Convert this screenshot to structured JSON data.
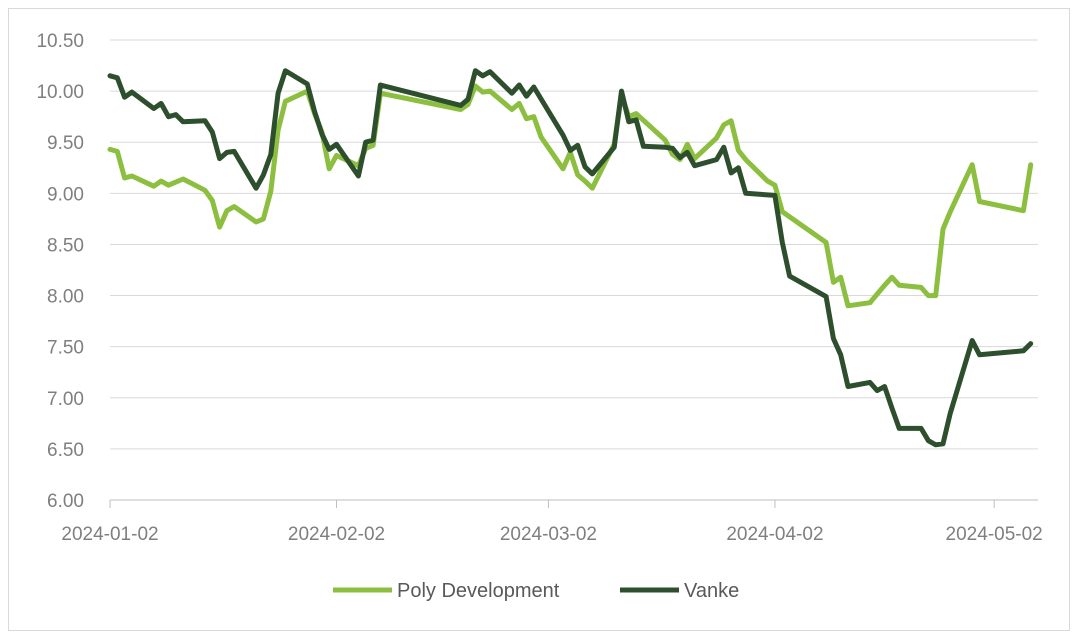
{
  "chart_data": {
    "type": "line",
    "title": "",
    "xlabel": "",
    "ylabel": "",
    "ylim": [
      6.0,
      10.5
    ],
    "xlim": [
      "2024-01-02",
      "2024-05-08"
    ],
    "y_ticks": [
      "6.00",
      "6.50",
      "7.00",
      "7.50",
      "8.00",
      "8.50",
      "9.00",
      "9.50",
      "10.00",
      "10.50"
    ],
    "x_ticks": [
      {
        "date": "2024-01-02",
        "label": "2024-01-02"
      },
      {
        "date": "2024-02-02",
        "label": "2024-02-02"
      },
      {
        "date": "2024-03-02",
        "label": "2024-03-02"
      },
      {
        "date": "2024-04-02",
        "label": "2024-04-02"
      },
      {
        "date": "2024-05-02",
        "label": "2024-05-02"
      }
    ],
    "grid": "horizontal",
    "legend_position": "bottom",
    "series": [
      {
        "name": "Poly Development",
        "color": "#8cbf3f",
        "points": [
          [
            "2024-01-02",
            9.43
          ],
          [
            "2024-01-03",
            9.41
          ],
          [
            "2024-01-04",
            9.15
          ],
          [
            "2024-01-05",
            9.17
          ],
          [
            "2024-01-08",
            9.07
          ],
          [
            "2024-01-09",
            9.12
          ],
          [
            "2024-01-10",
            9.08
          ],
          [
            "2024-01-12",
            9.14
          ],
          [
            "2024-01-15",
            9.03
          ],
          [
            "2024-01-16",
            8.93
          ],
          [
            "2024-01-17",
            8.67
          ],
          [
            "2024-01-18",
            8.83
          ],
          [
            "2024-01-19",
            8.87
          ],
          [
            "2024-01-22",
            8.72
          ],
          [
            "2024-01-23",
            8.75
          ],
          [
            "2024-01-24",
            9.02
          ],
          [
            "2024-01-25",
            9.62
          ],
          [
            "2024-01-26",
            9.9
          ],
          [
            "2024-01-29",
            10.0
          ],
          [
            "2024-01-30",
            9.78
          ],
          [
            "2024-01-31",
            9.6
          ],
          [
            "2024-02-01",
            9.24
          ],
          [
            "2024-02-02",
            9.37
          ],
          [
            "2024-02-05",
            9.27
          ],
          [
            "2024-02-06",
            9.44
          ],
          [
            "2024-02-07",
            9.47
          ],
          [
            "2024-02-08",
            9.98
          ],
          [
            "2024-02-19",
            9.82
          ],
          [
            "2024-02-20",
            9.87
          ],
          [
            "2024-02-21",
            10.05
          ],
          [
            "2024-02-22",
            9.99
          ],
          [
            "2024-02-23",
            10.0
          ],
          [
            "2024-02-26",
            9.82
          ],
          [
            "2024-02-27",
            9.88
          ],
          [
            "2024-02-28",
            9.73
          ],
          [
            "2024-02-29",
            9.75
          ],
          [
            "2024-03-01",
            9.55
          ],
          [
            "2024-03-04",
            9.24
          ],
          [
            "2024-03-05",
            9.4
          ],
          [
            "2024-03-06",
            9.18
          ],
          [
            "2024-03-07",
            9.12
          ],
          [
            "2024-03-08",
            9.05
          ],
          [
            "2024-03-11",
            9.48
          ],
          [
            "2024-03-12",
            9.96
          ],
          [
            "2024-03-13",
            9.75
          ],
          [
            "2024-03-14",
            9.78
          ],
          [
            "2024-03-18",
            9.52
          ],
          [
            "2024-03-19",
            9.38
          ],
          [
            "2024-03-20",
            9.33
          ],
          [
            "2024-03-21",
            9.48
          ],
          [
            "2024-03-22",
            9.34
          ],
          [
            "2024-03-25",
            9.54
          ],
          [
            "2024-03-26",
            9.67
          ],
          [
            "2024-03-27",
            9.71
          ],
          [
            "2024-03-28",
            9.42
          ],
          [
            "2024-03-29",
            9.33
          ],
          [
            "2024-04-01",
            9.12
          ],
          [
            "2024-04-02",
            9.08
          ],
          [
            "2024-04-03",
            8.82
          ],
          [
            "2024-04-08",
            8.57
          ],
          [
            "2024-04-09",
            8.52
          ],
          [
            "2024-04-10",
            8.13
          ],
          [
            "2024-04-11",
            8.18
          ],
          [
            "2024-04-12",
            7.9
          ],
          [
            "2024-04-15",
            7.93
          ],
          [
            "2024-04-17",
            8.1
          ],
          [
            "2024-04-18",
            8.18
          ],
          [
            "2024-04-19",
            8.1
          ],
          [
            "2024-04-22",
            8.08
          ],
          [
            "2024-04-23",
            8.0
          ],
          [
            "2024-04-24",
            8.0
          ],
          [
            "2024-04-25",
            8.65
          ],
          [
            "2024-04-26",
            8.82
          ],
          [
            "2024-04-29",
            9.28
          ],
          [
            "2024-04-30",
            8.92
          ],
          [
            "2024-05-06",
            8.83
          ],
          [
            "2024-05-07",
            9.28
          ]
        ]
      },
      {
        "name": "Vanke",
        "color": "#2e4f2d",
        "points": [
          [
            "2024-01-02",
            10.15
          ],
          [
            "2024-01-03",
            10.13
          ],
          [
            "2024-01-04",
            9.94
          ],
          [
            "2024-01-05",
            9.99
          ],
          [
            "2024-01-08",
            9.83
          ],
          [
            "2024-01-09",
            9.88
          ],
          [
            "2024-01-10",
            9.75
          ],
          [
            "2024-01-11",
            9.77
          ],
          [
            "2024-01-12",
            9.7
          ],
          [
            "2024-01-15",
            9.71
          ],
          [
            "2024-01-16",
            9.6
          ],
          [
            "2024-01-17",
            9.34
          ],
          [
            "2024-01-18",
            9.4
          ],
          [
            "2024-01-19",
            9.41
          ],
          [
            "2024-01-22",
            9.05
          ],
          [
            "2024-01-23",
            9.18
          ],
          [
            "2024-01-24",
            9.38
          ],
          [
            "2024-01-25",
            9.98
          ],
          [
            "2024-01-26",
            10.2
          ],
          [
            "2024-01-29",
            10.07
          ],
          [
            "2024-01-30",
            9.8
          ],
          [
            "2024-01-31",
            9.58
          ],
          [
            "2024-02-01",
            9.43
          ],
          [
            "2024-02-02",
            9.48
          ],
          [
            "2024-02-05",
            9.17
          ],
          [
            "2024-02-06",
            9.5
          ],
          [
            "2024-02-07",
            9.52
          ],
          [
            "2024-02-08",
            10.06
          ],
          [
            "2024-02-19",
            9.86
          ],
          [
            "2024-02-20",
            9.92
          ],
          [
            "2024-02-21",
            10.2
          ],
          [
            "2024-02-22",
            10.15
          ],
          [
            "2024-02-23",
            10.19
          ],
          [
            "2024-02-26",
            9.98
          ],
          [
            "2024-02-27",
            10.06
          ],
          [
            "2024-02-28",
            9.95
          ],
          [
            "2024-02-29",
            10.04
          ],
          [
            "2024-03-04",
            9.57
          ],
          [
            "2024-03-05",
            9.42
          ],
          [
            "2024-03-06",
            9.47
          ],
          [
            "2024-03-07",
            9.26
          ],
          [
            "2024-03-08",
            9.19
          ],
          [
            "2024-03-11",
            9.45
          ],
          [
            "2024-03-12",
            10.0
          ],
          [
            "2024-03-13",
            9.7
          ],
          [
            "2024-03-14",
            9.72
          ],
          [
            "2024-03-15",
            9.46
          ],
          [
            "2024-03-18",
            9.45
          ],
          [
            "2024-03-19",
            9.44
          ],
          [
            "2024-03-20",
            9.35
          ],
          [
            "2024-03-21",
            9.4
          ],
          [
            "2024-03-22",
            9.27
          ],
          [
            "2024-03-25",
            9.33
          ],
          [
            "2024-03-26",
            9.45
          ],
          [
            "2024-03-27",
            9.2
          ],
          [
            "2024-03-28",
            9.25
          ],
          [
            "2024-03-29",
            9.0
          ],
          [
            "2024-04-02",
            8.98
          ],
          [
            "2024-04-03",
            8.52
          ],
          [
            "2024-04-04",
            8.19
          ],
          [
            "2024-04-09",
            7.99
          ],
          [
            "2024-04-10",
            7.58
          ],
          [
            "2024-04-11",
            7.42
          ],
          [
            "2024-04-12",
            7.11
          ],
          [
            "2024-04-15",
            7.15
          ],
          [
            "2024-04-16",
            7.07
          ],
          [
            "2024-04-17",
            7.11
          ],
          [
            "2024-04-18",
            6.9
          ],
          [
            "2024-04-19",
            6.7
          ],
          [
            "2024-04-22",
            6.7
          ],
          [
            "2024-04-23",
            6.58
          ],
          [
            "2024-04-24",
            6.54
          ],
          [
            "2024-04-25",
            6.55
          ],
          [
            "2024-04-26",
            6.85
          ],
          [
            "2024-04-29",
            7.56
          ],
          [
            "2024-04-30",
            7.42
          ],
          [
            "2024-05-06",
            7.46
          ],
          [
            "2024-05-07",
            7.53
          ]
        ]
      }
    ]
  }
}
